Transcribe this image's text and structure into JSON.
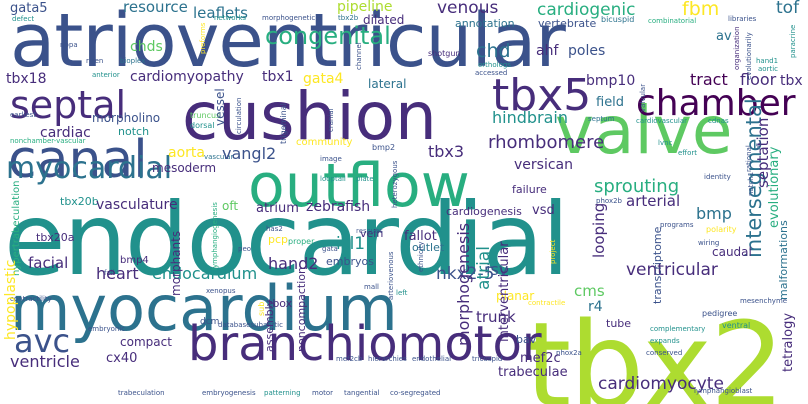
{
  "colors": {
    "dark_purple": "#440154",
    "deep_indigo": "#472d7b",
    "blue_indigo": "#3b528b",
    "steel_blue": "#2c728e",
    "teal_blue": "#21918c",
    "teal_green": "#28ae80",
    "green": "#5ec962",
    "lime": "#addc30",
    "yellow": "#fde725"
  },
  "words": {
    "atrioventricular": "atrioventricular",
    "cushion": "cushion",
    "endocardial": "endocardial",
    "myocardium": "myocardium",
    "tbx2": "tbx2",
    "outflow": "outflow",
    "valve": "valve",
    "canal": "canal",
    "branchiomotor": "branchiomotor",
    "septal": "septal",
    "chamber": "chamber",
    "tbx5": "tbx5",
    "myocardial": "myocardial",
    "avc": "avc",
    "congenital": "congenital",
    "intersegmental": "intersegmental",
    "venous": "venous",
    "cardiogenic": "cardiogenic",
    "fbm": "fbm",
    "tof": "tof",
    "gata5": "gata5",
    "resource": "resource",
    "leaflets": "leaflets",
    "pipeline": "pipeline",
    "chds": "chds",
    "chd": "chd",
    "ahf": "ahf",
    "poles": "poles",
    "cardiomyopathy": "cardiomyopathy",
    "tbx1": "tbx1",
    "gata4": "gata4",
    "lateral": "lateral",
    "bmp10": "bmp10",
    "tract": "tract",
    "floor": "floor",
    "tbx18": "tbx18",
    "cardiac": "cardiac",
    "hindbrain": "hindbrain",
    "field": "field",
    "aorta": "aorta",
    "vangl2": "vangl2",
    "tbx3": "tbx3",
    "mesoderm": "mesoderm",
    "rhombomere": "rhombomere",
    "versican": "versican",
    "sprouting": "sprouting",
    "septation": "septation",
    "tbx20b": "tbx20b",
    "vasculature": "vasculature",
    "oft": "oft",
    "atrium": "atrium",
    "zebrafish": "zebrafish",
    "cardiogenesis": "cardiogenesis",
    "vsd": "vsd",
    "arterial": "arterial",
    "bmp": "bmp",
    "isl1": "isl1",
    "fallot": "fallot",
    "outlet": "outlet",
    "tbx20a": "tbx20a",
    "bmp4": "bmp4",
    "looping": "looping",
    "facial": "facial",
    "heart": "heart",
    "endocardium": "endocardium",
    "hand2": "hand2",
    "isv": "isv",
    "nkx2_5": "nkx2-5",
    "ventricular": "ventricular",
    "morphogenesis": "morphogenesis",
    "atrial": "atrial",
    "interventricular": "interventricular",
    "planar": "planar",
    "cms": "cms",
    "r4": "r4",
    "tbox": "tbox",
    "trunk": "trunk",
    "ventricle": "ventricle",
    "cx40": "cx40",
    "compact": "compact",
    "dcm": "dcm",
    "mef2c": "mef2c",
    "cardiomyocyte": "cardiomyocyte",
    "tube": "tube",
    "bav": "bav",
    "caudal": "caudal",
    "tetralogy": "tetralogy",
    "trabeculae": "trabeculae",
    "morphants": "morphants",
    "hypoplastic": "hypoplastic",
    "vessel": "vessel",
    "notch": "notch",
    "morpholino": "morpholino",
    "annotation": "annotation",
    "vertebrate": "vertebrate",
    "dilated": "dilated",
    "av": "av",
    "hypertrabeculation": "hypertrabeculation",
    "community": "community",
    "bmp2": "bmp2",
    "vein": "vein",
    "embryos": "embryos",
    "failure": "failure",
    "transcriptome": "transcriptome",
    "malformations": "malformations",
    "pcp": "pcp",
    "assembly": "assembly",
    "noncompaction": "noncompaction",
    "sub": "sub",
    "defect": "defect",
    "nppa": "nppa",
    "riken": "riken",
    "bioplex": "bioplex",
    "anterior": "anterior",
    "earliest": "earliest",
    "networks": "networks",
    "morphogenetic": "morphogenetic",
    "tbx2b": "tbx2b",
    "bicuspid": "bicuspid",
    "combinatorial": "combinatorial",
    "libraries": "libraries",
    "paracrine": "paracrine",
    "organization": "organization",
    "evolutionarily": "evolutionarily",
    "shotgun": "shotgun",
    "orthologs": "orthologs",
    "accessed": "accessed",
    "channel": "channel",
    "cranial": "cranial",
    "trigeminal": "trigeminal",
    "circulation": "circulation",
    "valvular": "valvular",
    "hand1": "hand1",
    "aortic": "aortic",
    "septum": "septum",
    "cardiovascular": "cardiovascular",
    "cdnas": "cdnas",
    "effort": "effort",
    "lvnc": "lvnc",
    "identity": "identity",
    "image": "image",
    "looptail": "looptail",
    "heterozygous": "heterozygous",
    "plate": "plate",
    "rescues": "rescues",
    "phox2b": "phox2b",
    "programs": "programs",
    "polarity": "polarity",
    "wiring": "wiring",
    "has2": "has2",
    "proper": "proper",
    "peo": "peo",
    "gata": "gata",
    "arteriovenous": "arteriovenous",
    "fail": "fail",
    "contractility": "contractility",
    "xenopus": "xenopus",
    "mall": "mall",
    "left": "left",
    "contractile": "contractile",
    "mesenchyme": "mesenchyme",
    "pedigree": "pedigree",
    "ventral": "ventral",
    "complementary": "complementary",
    "expands": "expands",
    "conserved": "conserved",
    "phox2a": "phox2a",
    "databasesubaortic": "databasesubaortic",
    "hierarchies": "hierarchies",
    "endothelial": "endothelial",
    "tricuspid": "tricuspid",
    "tangential": "tangential",
    "motor": "motor",
    "patterning": "patterning",
    "embryogenesis": "embryogenesis",
    "co_segregated": "co-segregated",
    "lymphangioblast": "lymphangioblast",
    "trabeculation": "trabeculation",
    "embryonic": "embryonic",
    "truncus": "truncus",
    "dorsal": "dorsal",
    "vascular": "vascular",
    "nonchamber": "nonchamber-vascular",
    "lymphangiogenesis": "lymphangiogenesis",
    "preforms": "preforms",
    "rational": "rational",
    "evolutionary": "evolutionary",
    "ethnicity": "ethnicity",
    "project": "project",
    "r6": "r6",
    "tbx": "tbx",
    "mef2cb": "mef2cb",
    "notch1": "notch1"
  }
}
